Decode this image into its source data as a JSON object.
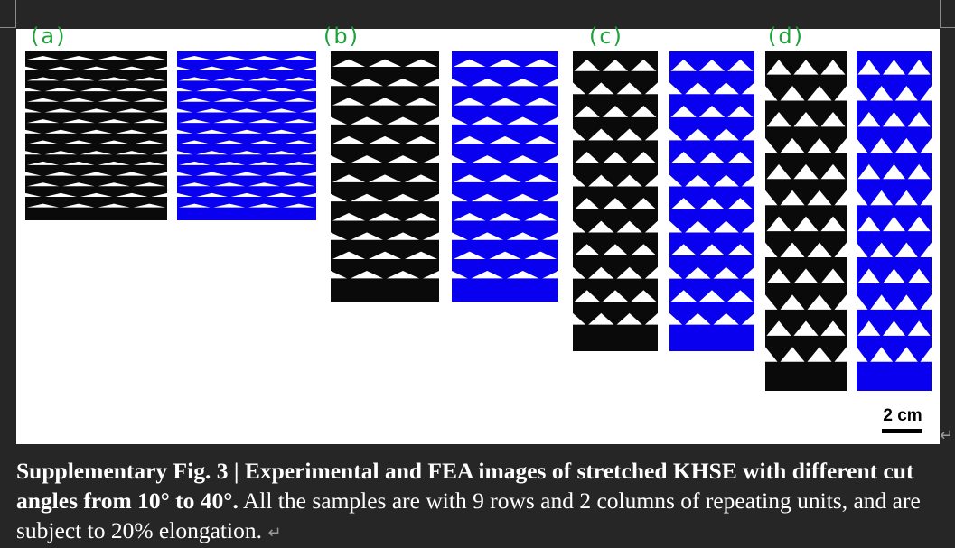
{
  "panel_labels": [
    "(a)",
    "(b)",
    "(c)",
    "(d)"
  ],
  "scale_bar": {
    "label": "2 cm"
  },
  "caption": {
    "bold": "Supplementary Fig. 3 | Experimental and FEA images of stretched KHSE with different cut angles from 10° to 40°.",
    "regular": " All the samples are with 9 rows and 2 columns of repeating units, and are subject to 20% elongation.",
    "return_mark": "↵"
  },
  "colors": {
    "experimental": "#0a0a0a",
    "fea": "#0a00f0",
    "annotation": "#1ea23a",
    "page_background": "#262626",
    "figure_background": "#ffffff"
  }
}
